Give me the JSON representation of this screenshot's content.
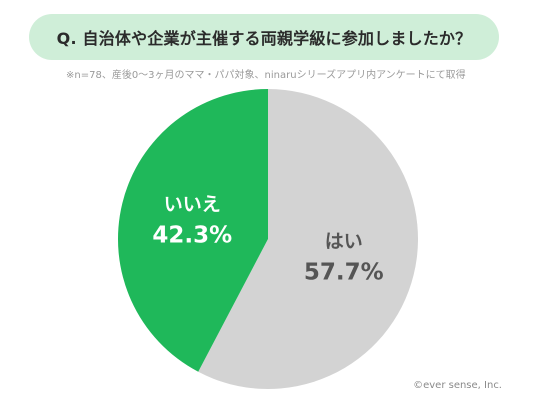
{
  "question": "Q. 自治体や企業が主催する両親学級に参加しましたか？",
  "note": "※n=78、産後0〜3ヶ月のママ・パパ対象、ninaruシリーズアプリ内アンケートにて取得",
  "copyright": "©ever sense, Inc.",
  "chart_data": {
    "type": "pie",
    "slices": [
      {
        "label": "はい",
        "value": 57.7,
        "display": "57.7%",
        "color": "#d3d3d3",
        "text_color": "#555555"
      },
      {
        "label": "いいえ",
        "value": 42.3,
        "display": "42.3%",
        "color": "#1fb85a",
        "text_color": "#ffffff"
      }
    ]
  }
}
